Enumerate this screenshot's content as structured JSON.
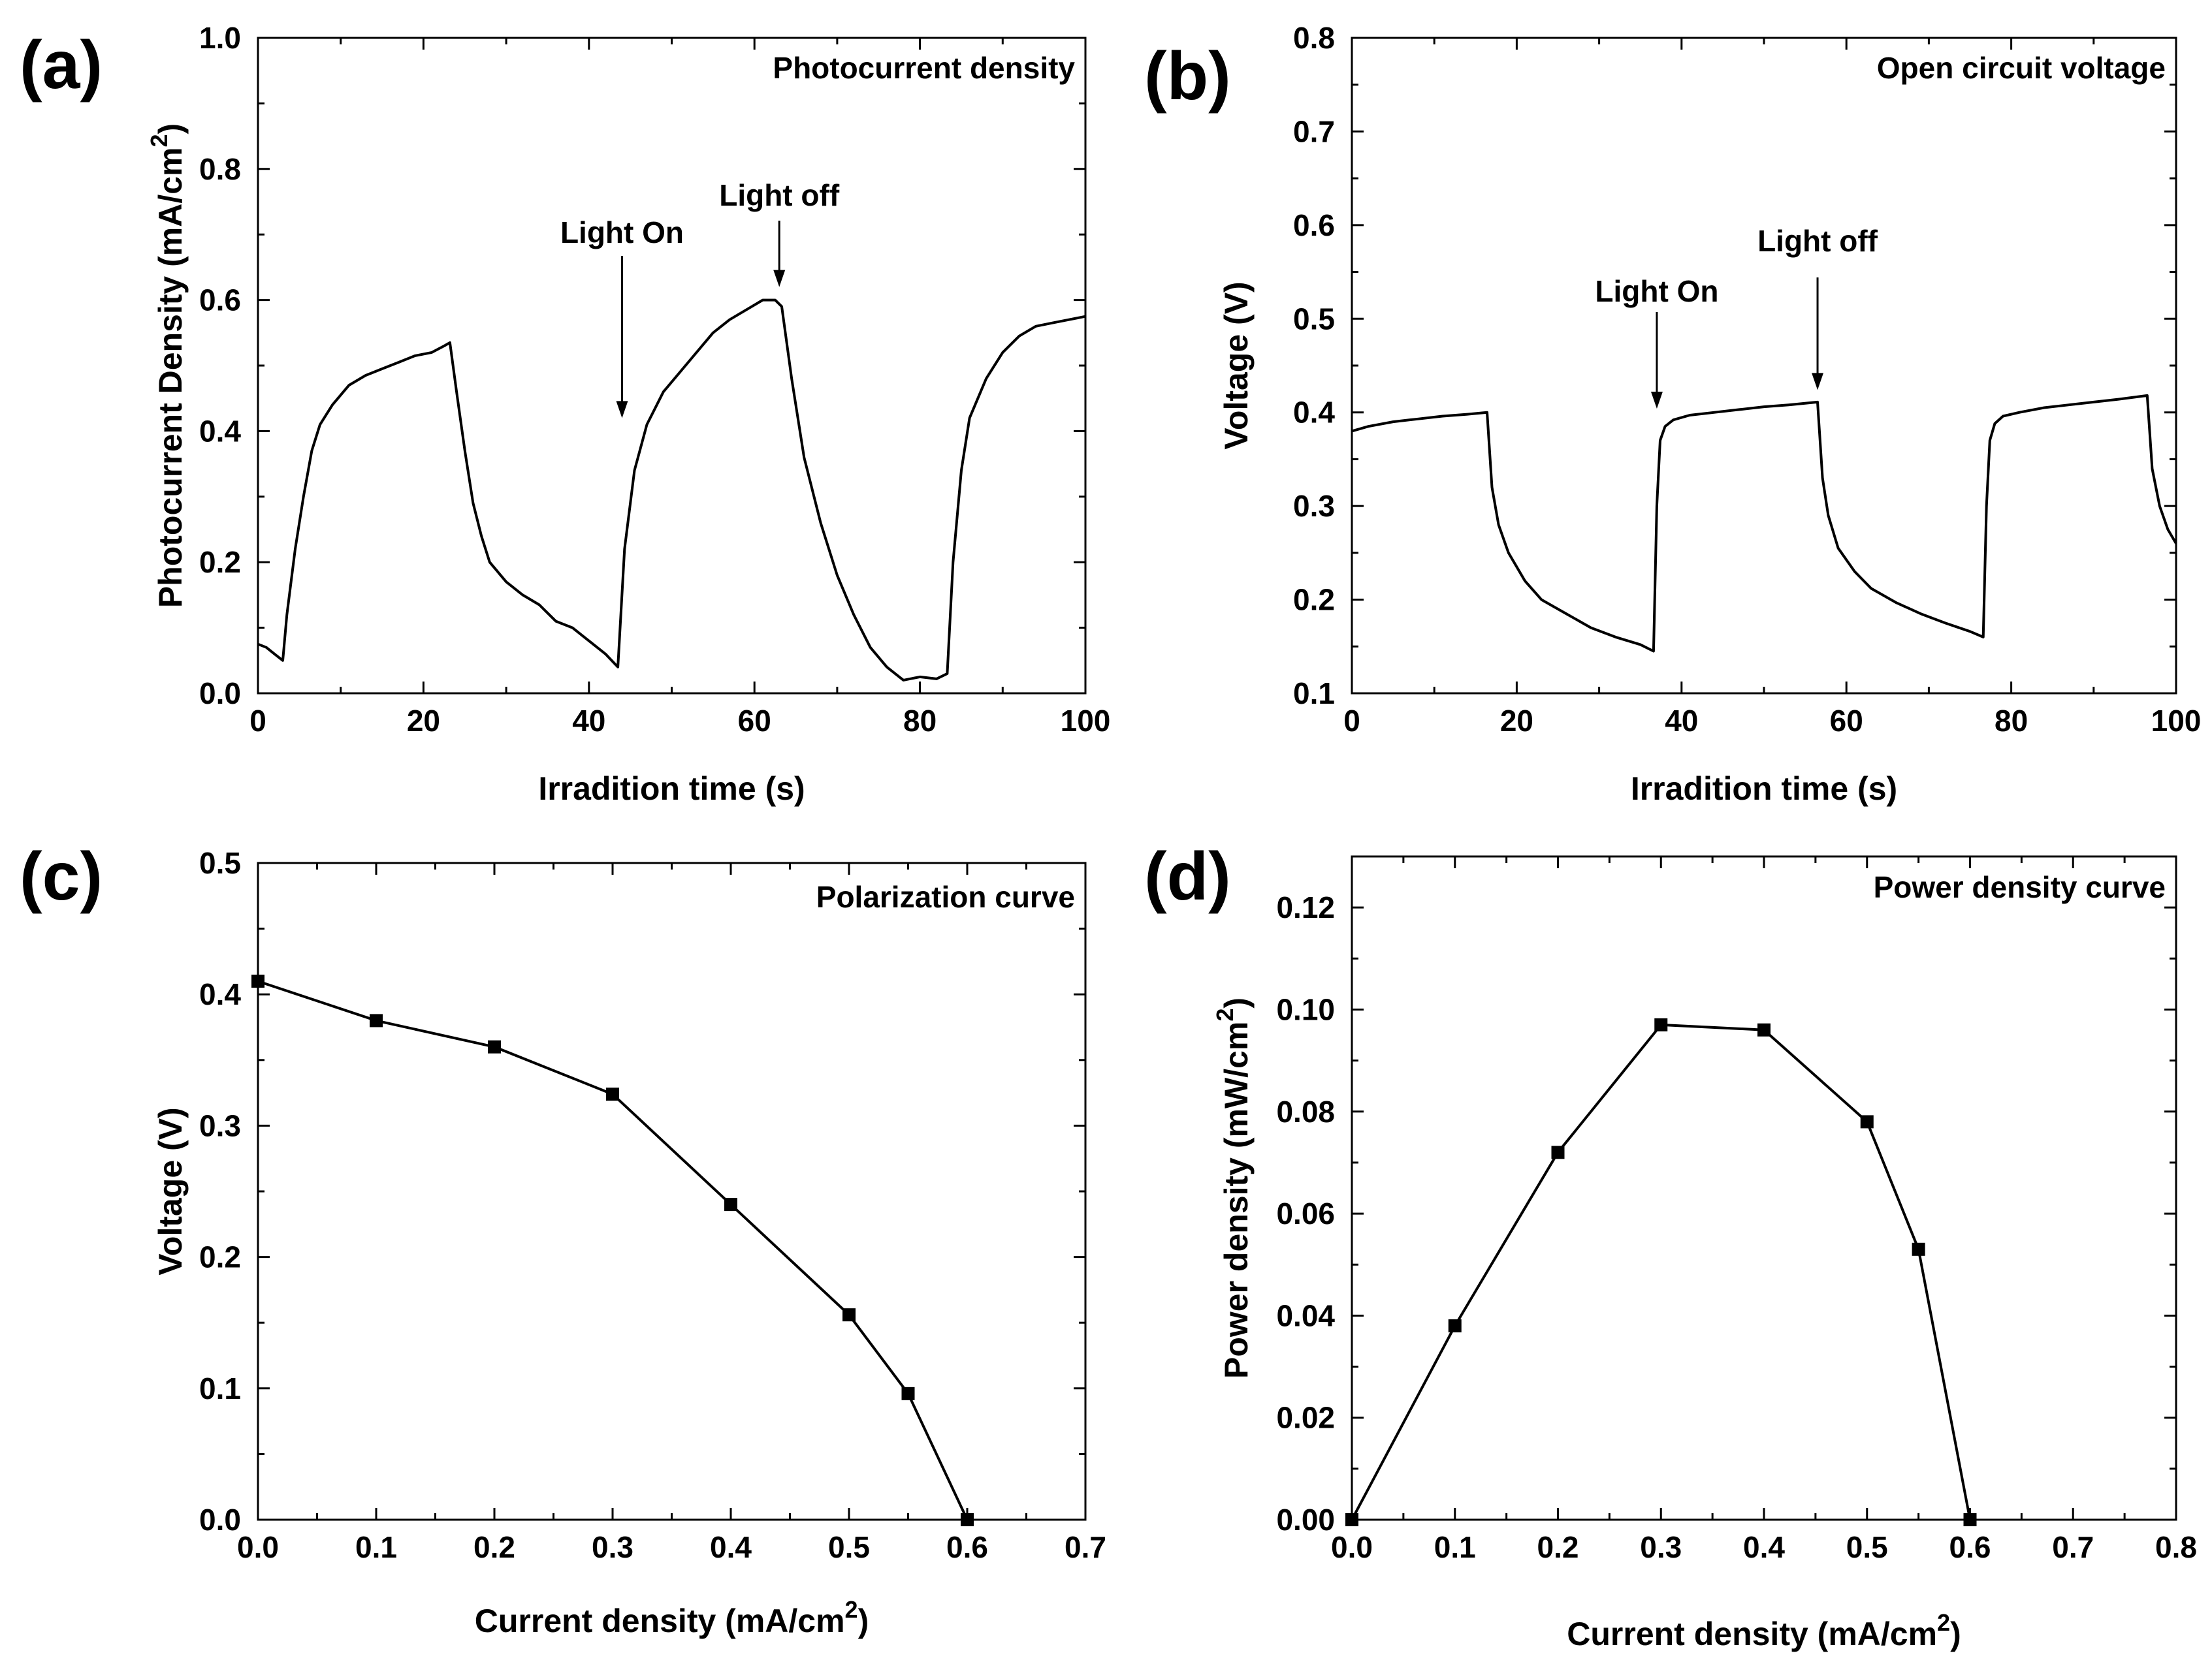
{
  "chart_data": [
    {
      "id": "a",
      "type": "line",
      "panel_label": "(a)",
      "title": "Photocurrent density",
      "xlabel": "Irradition time (s)",
      "ylabel": "Photocurrent Density (mA/cm",
      "ylabel_sup": "2",
      "ylabel_close": ")",
      "xlim": [
        0,
        100
      ],
      "ylim": [
        0.0,
        1.0
      ],
      "xticks": [
        0,
        20,
        40,
        60,
        80,
        100
      ],
      "xtick_labels": [
        "0",
        "20",
        "40",
        "60",
        "80",
        "100"
      ],
      "yticks": [
        0.0,
        0.2,
        0.4,
        0.6,
        0.8,
        1.0
      ],
      "ytick_labels": [
        "0.0",
        "0.2",
        "0.4",
        "0.6",
        "0.8",
        "1.0"
      ],
      "series": [
        {
          "name": "photocurrent",
          "x": [
            0,
            1,
            2,
            3,
            3.5,
            4.5,
            5.5,
            6.5,
            7.5,
            9,
            11,
            13,
            15,
            17,
            19,
            21,
            22.5,
            23.2,
            24,
            25,
            26,
            27,
            28,
            30,
            32,
            34,
            36,
            38,
            40,
            42,
            43.5,
            44.3,
            45.5,
            47,
            49,
            51,
            53,
            55,
            57,
            59,
            61,
            62.5,
            63.3,
            64.5,
            66,
            68,
            70,
            72,
            74,
            76,
            78,
            80,
            82,
            83.3,
            84,
            85,
            86,
            88,
            90,
            92,
            94,
            96,
            98,
            100
          ],
          "y": [
            0.075,
            0.07,
            0.06,
            0.05,
            0.12,
            0.22,
            0.3,
            0.37,
            0.41,
            0.44,
            0.47,
            0.485,
            0.495,
            0.505,
            0.515,
            0.52,
            0.53,
            0.535,
            0.46,
            0.37,
            0.29,
            0.24,
            0.2,
            0.17,
            0.15,
            0.135,
            0.11,
            0.1,
            0.08,
            0.06,
            0.04,
            0.22,
            0.34,
            0.41,
            0.46,
            0.49,
            0.52,
            0.55,
            0.57,
            0.585,
            0.6,
            0.6,
            0.59,
            0.48,
            0.36,
            0.26,
            0.18,
            0.12,
            0.07,
            0.04,
            0.02,
            0.025,
            0.022,
            0.03,
            0.2,
            0.34,
            0.42,
            0.48,
            0.52,
            0.545,
            0.56,
            0.565,
            0.57,
            0.575
          ]
        }
      ],
      "annotations": [
        {
          "text": "Light On",
          "x": 44,
          "y": 0.4
        },
        {
          "text": "Light off",
          "x": 63,
          "y": 0.6
        }
      ]
    },
    {
      "id": "b",
      "type": "line",
      "panel_label": "(b)",
      "title": "Open circuit voltage",
      "xlabel": "Irradition time (s)",
      "ylabel": "Voltage (V)",
      "xlim": [
        0,
        100
      ],
      "ylim": [
        0.1,
        0.8
      ],
      "xticks": [
        0,
        20,
        40,
        60,
        80,
        100
      ],
      "xtick_labels": [
        "0",
        "20",
        "40",
        "60",
        "80",
        "100"
      ],
      "yticks": [
        0.1,
        0.2,
        0.3,
        0.4,
        0.5,
        0.6,
        0.7,
        0.8
      ],
      "ytick_labels": [
        "0.1",
        "0.2",
        "0.3",
        "0.4",
        "0.5",
        "0.6",
        "0.7",
        "0.8"
      ],
      "series": [
        {
          "name": "voltage",
          "x": [
            0,
            2,
            5,
            8,
            11,
            14,
            16.4,
            17,
            17.8,
            19,
            21,
            23,
            26,
            29,
            32,
            35,
            36.6,
            37,
            37.4,
            38,
            39,
            41,
            44,
            47,
            50,
            53,
            56.5,
            57.1,
            57.8,
            59,
            61,
            63,
            66,
            69,
            72,
            75,
            76.6,
            77,
            77.4,
            78,
            79,
            81,
            84,
            87,
            90,
            93,
            96.5,
            97.1,
            98,
            99,
            100
          ],
          "y": [
            0.38,
            0.385,
            0.39,
            0.393,
            0.396,
            0.398,
            0.4,
            0.32,
            0.28,
            0.25,
            0.22,
            0.2,
            0.185,
            0.17,
            0.16,
            0.152,
            0.145,
            0.3,
            0.37,
            0.385,
            0.392,
            0.397,
            0.4,
            0.403,
            0.406,
            0.408,
            0.411,
            0.33,
            0.29,
            0.255,
            0.23,
            0.212,
            0.197,
            0.185,
            0.175,
            0.166,
            0.16,
            0.3,
            0.37,
            0.388,
            0.396,
            0.4,
            0.405,
            0.408,
            0.411,
            0.414,
            0.418,
            0.34,
            0.3,
            0.275,
            0.26
          ]
        }
      ],
      "annotations": [
        {
          "text": "Light On",
          "x": 37,
          "y": 0.39
        },
        {
          "text": "Light off",
          "x": 56.5,
          "y": 0.41
        }
      ]
    },
    {
      "id": "c",
      "type": "line",
      "panel_label": "(c)",
      "title": "Polarization curve",
      "xlabel": "Current density (mA/cm",
      "xlabel_sup": "2",
      "xlabel_close": ")",
      "ylabel": "Voltage (V)",
      "xlim": [
        0.0,
        0.7
      ],
      "ylim": [
        0.0,
        0.5
      ],
      "xticks": [
        0.0,
        0.1,
        0.2,
        0.3,
        0.4,
        0.5,
        0.6,
        0.7
      ],
      "xtick_labels": [
        "0.0",
        "0.1",
        "0.2",
        "0.3",
        "0.4",
        "0.5",
        "0.6",
        "0.7"
      ],
      "yticks": [
        0.0,
        0.1,
        0.2,
        0.3,
        0.4,
        0.5
      ],
      "ytick_labels": [
        "0.0",
        "0.1",
        "0.2",
        "0.3",
        "0.4",
        "0.5"
      ],
      "series": [
        {
          "name": "polarization",
          "markers": true,
          "x": [
            0.0,
            0.1,
            0.2,
            0.3,
            0.4,
            0.5,
            0.55,
            0.6
          ],
          "y": [
            0.41,
            0.38,
            0.36,
            0.324,
            0.24,
            0.156,
            0.096,
            0.0
          ]
        }
      ],
      "annotations": []
    },
    {
      "id": "d",
      "type": "line",
      "panel_label": "(d)",
      "title": "Power density curve",
      "xlabel": "Current density (mA/cm",
      "xlabel_sup": "2",
      "xlabel_close": ")",
      "ylabel": "Power density (mW/cm",
      "ylabel_sup": "2",
      "ylabel_close": ")",
      "xlim": [
        0.0,
        0.8
      ],
      "ylim": [
        0.0,
        0.13
      ],
      "xticks": [
        0.0,
        0.1,
        0.2,
        0.3,
        0.4,
        0.5,
        0.6,
        0.7,
        0.8
      ],
      "xtick_labels": [
        "0.0",
        "0.1",
        "0.2",
        "0.3",
        "0.4",
        "0.5",
        "0.6",
        "0.7",
        "0.8"
      ],
      "yticks": [
        0.0,
        0.02,
        0.04,
        0.06,
        0.08,
        0.1,
        0.12
      ],
      "ytick_labels": [
        "0.00",
        "0.02",
        "0.04",
        "0.06",
        "0.08",
        "0.10",
        "0.12"
      ],
      "series": [
        {
          "name": "power density",
          "markers": true,
          "x": [
            0.0,
            0.1,
            0.2,
            0.3,
            0.4,
            0.5,
            0.55,
            0.6
          ],
          "y": [
            0.0,
            0.038,
            0.072,
            0.097,
            0.096,
            0.078,
            0.053,
            0.0
          ]
        }
      ],
      "annotations": []
    }
  ]
}
